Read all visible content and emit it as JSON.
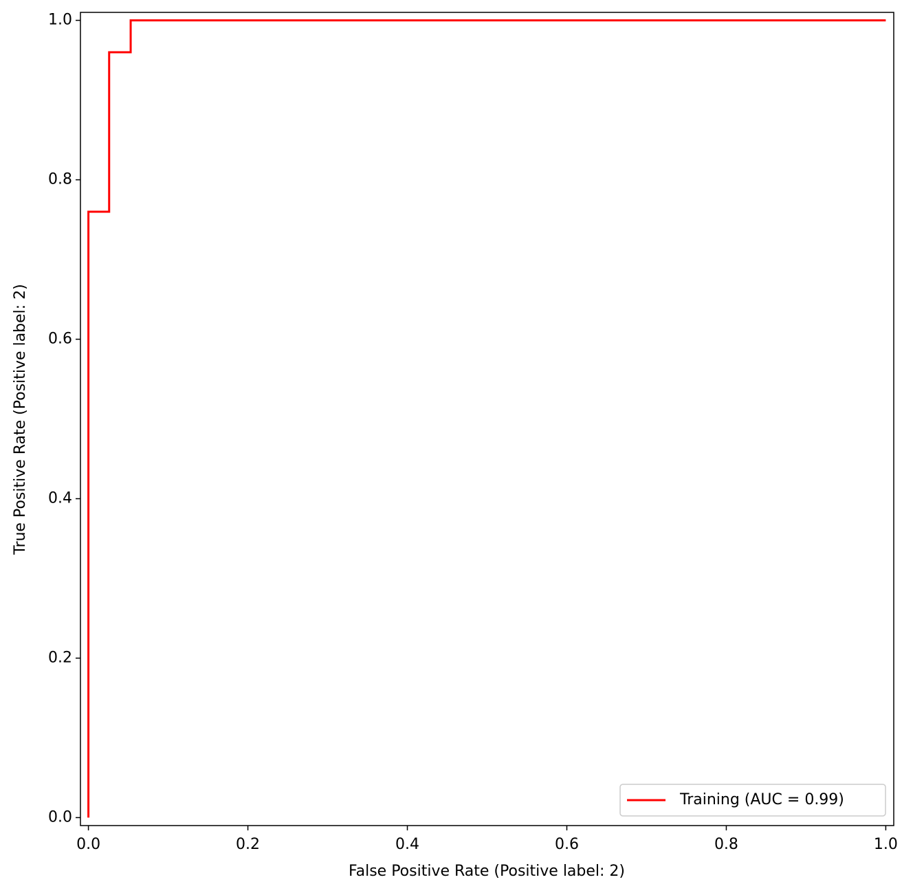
{
  "chart_data": {
    "type": "line",
    "xlabel": "False Positive Rate (Positive label: 2)",
    "ylabel": "True Positive Rate (Positive label: 2)",
    "x": [
      0,
      0,
      0.026,
      0.026,
      0.053,
      0.053,
      1
    ],
    "series": [
      {
        "name": "Training (AUC = 0.99)",
        "color": "#ff0000",
        "values": [
          0,
          0.76,
          0.76,
          0.96,
          0.96,
          1,
          1
        ]
      }
    ],
    "xlim": [
      -0.01,
      1.01
    ],
    "ylim": [
      -0.01,
      1.01
    ],
    "xticks": [
      {
        "value": 0,
        "label": "0.0"
      },
      0.2,
      0.4,
      0.6,
      0.8,
      {
        "value": 1,
        "label": "1.0"
      }
    ],
    "yticks": [
      {
        "value": 0,
        "label": "0.0"
      },
      0.2,
      0.4,
      0.6,
      0.8,
      {
        "value": 1,
        "label": "1.0"
      }
    ],
    "grid": false,
    "legend": "lower right",
    "step": true
  }
}
